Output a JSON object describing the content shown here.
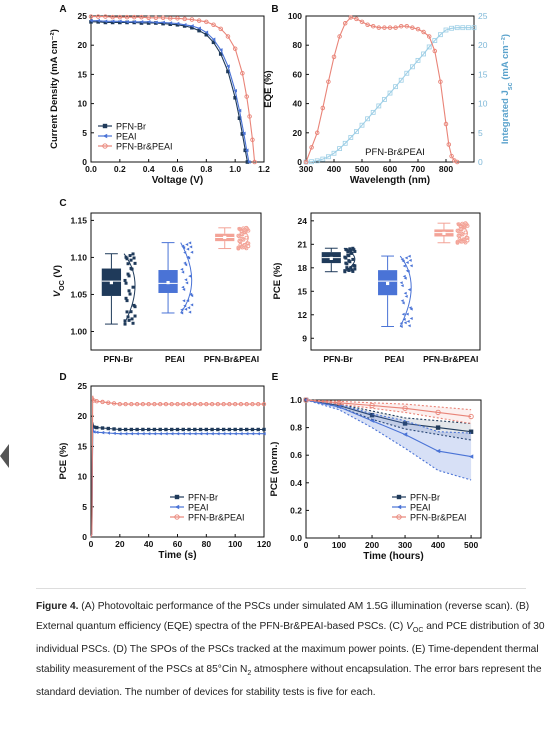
{
  "colors": {
    "br": "#1f3a5a",
    "peai": "#4a73d6",
    "both": "#e98478",
    "both_box": "#f3a397",
    "cyan": "#9ecfe6"
  },
  "panel_letters": [
    "A",
    "B",
    "C",
    "D",
    "E"
  ],
  "chart_data": [
    {
      "panel": "A",
      "type": "line",
      "xlabel": "Voltage (V)",
      "ylabel": "Current Density (mA cm⁻²)",
      "xlim": [
        0.0,
        1.2
      ],
      "ylim": [
        0,
        25
      ],
      "xticks": [
        "0.0",
        "0.2",
        "0.4",
        "0.6",
        "0.8",
        "1.0",
        "1.2"
      ],
      "yticks": [
        "0",
        "5",
        "10",
        "15",
        "20",
        "25"
      ],
      "legend_position": "bottom-left",
      "series": [
        {
          "name": "PFN-Br",
          "color": "#1f3a5a",
          "marker": "square",
          "x": [
            0,
            0.05,
            0.1,
            0.15,
            0.2,
            0.25,
            0.3,
            0.35,
            0.4,
            0.45,
            0.5,
            0.55,
            0.6,
            0.65,
            0.7,
            0.75,
            0.8,
            0.85,
            0.9,
            0.95,
            1.0,
            1.03,
            1.05,
            1.07,
            1.085
          ],
          "y": [
            24.0,
            24.0,
            23.9,
            23.9,
            23.9,
            23.9,
            23.9,
            23.8,
            23.8,
            23.8,
            23.7,
            23.6,
            23.5,
            23.3,
            23.0,
            22.5,
            21.8,
            20.5,
            18.5,
            15.5,
            11.0,
            7.5,
            4.8,
            2.0,
            0
          ]
        },
        {
          "name": "PEAI",
          "color": "#4a73d6",
          "marker": "triangle-left",
          "x": [
            0,
            0.05,
            0.1,
            0.15,
            0.2,
            0.25,
            0.3,
            0.35,
            0.4,
            0.45,
            0.5,
            0.55,
            0.6,
            0.65,
            0.7,
            0.75,
            0.8,
            0.85,
            0.9,
            0.95,
            1.0,
            1.03,
            1.06,
            1.08,
            1.095
          ],
          "y": [
            24.2,
            24.2,
            24.1,
            24.1,
            24.1,
            24.0,
            24.0,
            24.0,
            24.0,
            23.9,
            23.9,
            23.8,
            23.7,
            23.5,
            23.3,
            22.9,
            22.2,
            21.0,
            19.2,
            16.4,
            12.2,
            8.8,
            4.9,
            2.0,
            0
          ]
        },
        {
          "name": "PFN-Br&PEAI",
          "color": "#e98478",
          "marker": "circle",
          "x": [
            0,
            0.05,
            0.1,
            0.15,
            0.2,
            0.25,
            0.3,
            0.35,
            0.4,
            0.45,
            0.5,
            0.55,
            0.6,
            0.65,
            0.7,
            0.75,
            0.8,
            0.85,
            0.9,
            0.95,
            1.0,
            1.05,
            1.08,
            1.1,
            1.12,
            1.135
          ],
          "y": [
            24.9,
            24.9,
            24.9,
            24.8,
            24.8,
            24.8,
            24.8,
            24.8,
            24.7,
            24.7,
            24.7,
            24.6,
            24.6,
            24.5,
            24.4,
            24.2,
            24.0,
            23.5,
            22.8,
            21.5,
            19.4,
            15.2,
            11.2,
            7.8,
            3.8,
            0
          ]
        }
      ]
    },
    {
      "panel": "B",
      "type": "line",
      "xlabel": "Wavelength (nm)",
      "ylabel": "EQE (%)",
      "y2label": "Integrated J",
      "y2label_sub": "sc",
      "y2label_unit": " (mA cm⁻²)",
      "xlim": [
        300,
        900
      ],
      "ylim": [
        0,
        100
      ],
      "y2lim": [
        0,
        25
      ],
      "xticks": [
        "300",
        "400",
        "500",
        "600",
        "700",
        "800"
      ],
      "yticks": [
        "0",
        "20",
        "40",
        "60",
        "80",
        "100"
      ],
      "y2ticks": [
        "0",
        "5",
        "10",
        "15",
        "20",
        "25"
      ],
      "annotation": "PFN-Br&PEAI",
      "series": [
        {
          "name": "EQE",
          "color": "#e98478",
          "marker": "circle",
          "x": [
            300,
            320,
            340,
            360,
            380,
            400,
            420,
            440,
            460,
            480,
            500,
            520,
            540,
            560,
            580,
            600,
            620,
            640,
            660,
            680,
            700,
            720,
            740,
            760,
            780,
            800,
            810,
            820,
            830,
            840
          ],
          "y": [
            0,
            10,
            20,
            37,
            55,
            72,
            86,
            95,
            99,
            98,
            96,
            94,
            93,
            92,
            92,
            92,
            92,
            93,
            93,
            92,
            91,
            89,
            86,
            76,
            55,
            26,
            12,
            4,
            1,
            0
          ]
        },
        {
          "name": "Integrated Jsc",
          "color": "#9ecfe6",
          "marker": "open-square",
          "axis": "right",
          "x": [
            300,
            320,
            340,
            360,
            380,
            400,
            420,
            440,
            460,
            480,
            500,
            520,
            540,
            560,
            580,
            600,
            620,
            640,
            660,
            680,
            700,
            720,
            740,
            760,
            780,
            800,
            820,
            840,
            860,
            880,
            900
          ],
          "y": [
            0,
            0.05,
            0.2,
            0.5,
            0.9,
            1.5,
            2.3,
            3.2,
            4.2,
            5.2,
            6.3,
            7.4,
            8.5,
            9.6,
            10.7,
            11.8,
            12.9,
            14.0,
            15.2,
            16.3,
            17.4,
            18.5,
            19.7,
            20.8,
            21.8,
            22.6,
            22.9,
            23.0,
            23.0,
            23.0,
            23.0
          ]
        }
      ]
    },
    {
      "panel": "C-left",
      "type": "box",
      "ylabel": "V",
      "ylabel_sub": "OC",
      "ylabel_unit": " (V)",
      "ylim": [
        0.975,
        1.16
      ],
      "yticks": [
        "1.00",
        "1.05",
        "1.10",
        "1.15"
      ],
      "categories": [
        "PFN-Br",
        "PEAI",
        "PFN-Br&PEAI"
      ],
      "boxes": [
        {
          "min": 1.01,
          "q1": 1.048,
          "median": 1.068,
          "mean": 1.066,
          "q3": 1.085,
          "max": 1.105,
          "color": "#1f3a5a"
        },
        {
          "min": 1.025,
          "q1": 1.052,
          "median": 1.065,
          "mean": 1.066,
          "q3": 1.083,
          "max": 1.12,
          "color": "#4a73d6"
        },
        {
          "min": 1.112,
          "q1": 1.122,
          "median": 1.127,
          "mean": 1.127,
          "q3": 1.132,
          "max": 1.14,
          "color": "#f3a397"
        }
      ]
    },
    {
      "panel": "C-right",
      "type": "box",
      "ylabel": "PCE (%)",
      "ylim": [
        7.5,
        25
      ],
      "yticks": [
        "9",
        "12",
        "15",
        "18",
        "21",
        "24"
      ],
      "categories": [
        "PFN-Br",
        "PEAI",
        "PFN-Br&PEAI"
      ],
      "boxes": [
        {
          "min": 17.5,
          "q1": 18.6,
          "median": 19.3,
          "mean": 19.2,
          "q3": 20.0,
          "max": 20.5,
          "color": "#1f3a5a"
        },
        {
          "min": 10.5,
          "q1": 14.5,
          "median": 16.3,
          "mean": 16.0,
          "q3": 17.7,
          "max": 19.5,
          "color": "#4a73d6"
        },
        {
          "min": 21.2,
          "q1": 22.0,
          "median": 22.5,
          "mean": 22.4,
          "q3": 22.9,
          "max": 23.7,
          "color": "#f3a397"
        }
      ]
    },
    {
      "panel": "D",
      "type": "line",
      "xlabel": "Time (s)",
      "ylabel": "PCE (%)",
      "xlim": [
        0,
        120
      ],
      "ylim": [
        0,
        25
      ],
      "xticks": [
        "0",
        "20",
        "40",
        "60",
        "80",
        "100",
        "120"
      ],
      "yticks": [
        "0",
        "5",
        "10",
        "15",
        "20",
        "25"
      ],
      "legend_position": "bottom-right",
      "series": [
        {
          "name": "PFN-Br",
          "color": "#1f3a5a",
          "marker": "square",
          "steady": 17.8,
          "start": 18.2
        },
        {
          "name": "PEAI",
          "color": "#4a73d6",
          "marker": "triangle-left",
          "steady": 17.1,
          "start": 17.4
        },
        {
          "name": "PFN-Br&PEAI",
          "color": "#e98478",
          "marker": "circle",
          "steady": 22.0,
          "start": 22.6
        }
      ]
    },
    {
      "panel": "E",
      "type": "line",
      "xlabel": "Time (hours)",
      "ylabel": "PCE (norm.)",
      "xlim": [
        0,
        530
      ],
      "ylim": [
        0,
        1.0
      ],
      "xticks": [
        "0",
        "100",
        "200",
        "300",
        "400",
        "500"
      ],
      "yticks": [
        "0.0",
        "0.2",
        "0.4",
        "0.6",
        "0.8",
        "1.0"
      ],
      "legend_position": "bottom-right",
      "series": [
        {
          "name": "PFN-Br",
          "color": "#1f3a5a",
          "marker": "square",
          "x": [
            0,
            100,
            200,
            300,
            400,
            500
          ],
          "y": [
            1.0,
            0.96,
            0.89,
            0.83,
            0.8,
            0.77
          ],
          "err": [
            0,
            0.01,
            0.03,
            0.04,
            0.05,
            0.06
          ]
        },
        {
          "name": "PEAI",
          "color": "#4a73d6",
          "marker": "triangle-left",
          "x": [
            0,
            100,
            200,
            300,
            400,
            500
          ],
          "y": [
            1.0,
            0.95,
            0.85,
            0.75,
            0.63,
            0.59
          ],
          "err": [
            0,
            0.02,
            0.05,
            0.1,
            0.14,
            0.17
          ]
        },
        {
          "name": "PFN-Br&PEAI",
          "color": "#e98478",
          "marker": "circle",
          "x": [
            0,
            100,
            200,
            300,
            400,
            500
          ],
          "y": [
            1.0,
            0.98,
            0.96,
            0.94,
            0.91,
            0.88
          ],
          "err": [
            0,
            0.01,
            0.02,
            0.03,
            0.04,
            0.05
          ]
        }
      ]
    }
  ],
  "caption": {
    "label": "Figure 4.",
    "parts": [
      " (A) Photovoltaic performance of the PSCs under simulated AM 1.5G illumination (reverse scan). (B) External quantum efficiency (EQE) spectra of the PFN-Br&PEAI-based PSCs. (C) ",
      "V",
      "OC",
      " and PCE distribution of 30 individual PSCs. (D) The SPOs of the PSCs tracked at the maximum power points. (E) Time-dependent thermal stability measurement of the PSCs at 85°Cin N",
      "2",
      " atmosphere without encapsulation. The error bars represent the standard deviation. The number of devices for stability tests is five for each."
    ]
  }
}
